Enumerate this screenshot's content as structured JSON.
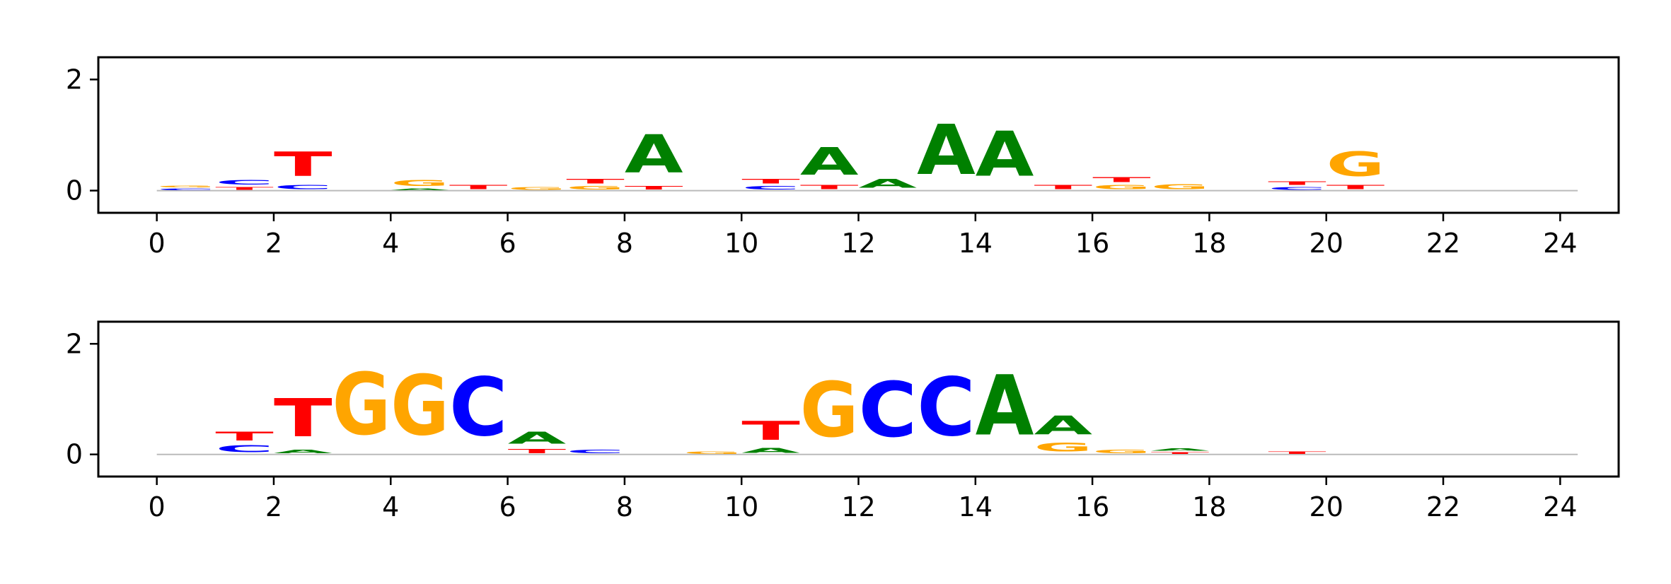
{
  "chart_data": [
    {
      "type": "sequence-logo",
      "title": "",
      "xlabel": "",
      "ylabel": "",
      "xlim": [
        -1,
        25
      ],
      "ylim": [
        -0.4,
        2.4
      ],
      "x_ticks": [
        "0",
        "2",
        "4",
        "6",
        "8",
        "10",
        "12",
        "14",
        "16",
        "18",
        "20",
        "22",
        "24"
      ],
      "y_ticks": [
        "0",
        "2"
      ],
      "grid": false,
      "positions": [
        {
          "x": 0.5,
          "letters": [
            {
              "base": "C",
              "height": 0.05
            },
            {
              "base": "G",
              "height": 0.05
            }
          ]
        },
        {
          "x": 1.5,
          "letters": [
            {
              "base": "T",
              "height": 0.08
            },
            {
              "base": "C",
              "height": 0.13
            }
          ]
        },
        {
          "x": 2.5,
          "letters": [
            {
              "base": "C",
              "height": 0.12
            },
            {
              "base": "T",
              "height": 0.7
            }
          ]
        },
        {
          "x": 4.5,
          "letters": [
            {
              "base": "A",
              "height": 0.05
            },
            {
              "base": "G",
              "height": 0.17
            }
          ]
        },
        {
          "x": 5.5,
          "letters": [
            {
              "base": "T",
              "height": 0.12
            }
          ]
        },
        {
          "x": 6.5,
          "letters": [
            {
              "base": "G",
              "height": 0.08
            }
          ]
        },
        {
          "x": 7.5,
          "letters": [
            {
              "base": "G",
              "height": 0.1
            },
            {
              "base": "T",
              "height": 0.13
            }
          ]
        },
        {
          "x": 8.5,
          "letters": [
            {
              "base": "T",
              "height": 0.1
            },
            {
              "base": "A",
              "height": 1.1
            }
          ]
        },
        {
          "x": 10.5,
          "letters": [
            {
              "base": "C",
              "height": 0.1
            },
            {
              "base": "T",
              "height": 0.13
            }
          ]
        },
        {
          "x": 11.5,
          "letters": [
            {
              "base": "T",
              "height": 0.12
            },
            {
              "base": "A",
              "height": 0.8
            }
          ]
        },
        {
          "x": 12.5,
          "letters": [
            {
              "base": "A",
              "height": 0.25
            }
          ]
        },
        {
          "x": 13.5,
          "letters": [
            {
              "base": "A",
              "height": 1.45
            }
          ]
        },
        {
          "x": 14.5,
          "letters": [
            {
              "base": "A",
              "height": 1.3
            }
          ]
        },
        {
          "x": 15.5,
          "letters": [
            {
              "base": "T",
              "height": 0.12
            }
          ]
        },
        {
          "x": 16.5,
          "letters": [
            {
              "base": "G",
              "height": 0.12
            },
            {
              "base": "T",
              "height": 0.15
            }
          ]
        },
        {
          "x": 17.5,
          "letters": [
            {
              "base": "G",
              "height": 0.14
            }
          ]
        },
        {
          "x": 19.5,
          "letters": [
            {
              "base": "C",
              "height": 0.08
            },
            {
              "base": "T",
              "height": 0.1
            }
          ]
        },
        {
          "x": 20.5,
          "letters": [
            {
              "base": "T",
              "height": 0.12
            },
            {
              "base": "G",
              "height": 0.7
            }
          ]
        }
      ]
    },
    {
      "type": "sequence-logo",
      "title": "",
      "xlabel": "",
      "ylabel": "",
      "xlim": [
        -1,
        25
      ],
      "ylim": [
        -0.4,
        2.4
      ],
      "x_ticks": [
        "0",
        "2",
        "4",
        "6",
        "8",
        "10",
        "12",
        "14",
        "16",
        "18",
        "20",
        "22",
        "24"
      ],
      "y_ticks": [
        "0",
        "2"
      ],
      "grid": false,
      "positions": [
        {
          "x": 1.5,
          "letters": [
            {
              "base": "C",
              "height": 0.2
            },
            {
              "base": "T",
              "height": 0.25
            }
          ]
        },
        {
          "x": 2.5,
          "letters": [
            {
              "base": "A",
              "height": 0.1
            },
            {
              "base": "T",
              "height": 1.1
            }
          ]
        },
        {
          "x": 3.5,
          "letters": [
            {
              "base": "G",
              "height": 1.8
            }
          ]
        },
        {
          "x": 4.5,
          "letters": [
            {
              "base": "G",
              "height": 1.75
            }
          ]
        },
        {
          "x": 5.5,
          "letters": [
            {
              "base": "C",
              "height": 1.7
            }
          ]
        },
        {
          "x": 6.5,
          "letters": [
            {
              "base": "T",
              "height": 0.12
            },
            {
              "base": "A",
              "height": 0.35
            }
          ]
        },
        {
          "x": 7.5,
          "letters": [
            {
              "base": "C",
              "height": 0.1
            }
          ]
        },
        {
          "x": 9.5,
          "letters": [
            {
              "base": "G",
              "height": 0.06
            }
          ]
        },
        {
          "x": 10.5,
          "letters": [
            {
              "base": "A",
              "height": 0.15
            },
            {
              "base": "T",
              "height": 0.55
            }
          ]
        },
        {
          "x": 11.5,
          "letters": [
            {
              "base": "G",
              "height": 1.6
            }
          ]
        },
        {
          "x": 12.5,
          "letters": [
            {
              "base": "C",
              "height": 1.6
            }
          ]
        },
        {
          "x": 13.5,
          "letters": [
            {
              "base": "C",
              "height": 1.7
            }
          ]
        },
        {
          "x": 14.5,
          "letters": [
            {
              "base": "A",
              "height": 1.75
            }
          ]
        },
        {
          "x": 15.5,
          "letters": [
            {
              "base": "G",
              "height": 0.25
            },
            {
              "base": "A",
              "height": 0.55
            }
          ]
        },
        {
          "x": 16.5,
          "letters": [
            {
              "base": "G",
              "height": 0.1
            }
          ]
        },
        {
          "x": 17.5,
          "letters": [
            {
              "base": "T",
              "height": 0.05
            },
            {
              "base": "A",
              "height": 0.07
            }
          ]
        },
        {
          "x": 19.5,
          "letters": [
            {
              "base": "T",
              "height": 0.06
            }
          ]
        }
      ]
    }
  ],
  "colors": {
    "A": "#008000",
    "C": "#0000ff",
    "G": "#ffa500",
    "T": "#ff0000"
  }
}
